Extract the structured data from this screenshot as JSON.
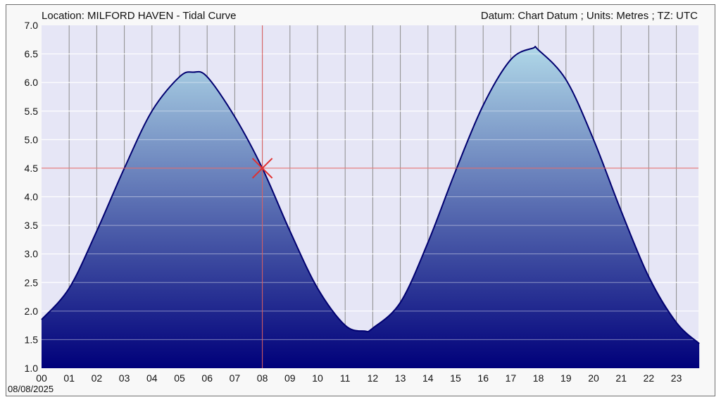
{
  "header": {
    "location": "Location: MILFORD HAVEN - Tidal Curve",
    "datum": "Datum: Chart Datum ; Units: Metres ; TZ: UTC"
  },
  "date_label": "08/08/2025",
  "colors": {
    "plot_bg": "#e6e6f6",
    "curve": "#000070",
    "fill_top": "#b0d8e8",
    "fill_bottom": "#00007a",
    "crosshair": "#e06060",
    "vgrid": "#8c8c8c",
    "hgrid": "#ffffff"
  },
  "chart_data": {
    "type": "area",
    "title": "Location: MILFORD HAVEN - Tidal Curve",
    "xlabel": "",
    "ylabel": "",
    "xlim": [
      0,
      23.83
    ],
    "ylim": [
      1.0,
      7.0
    ],
    "x_ticks": [
      "00",
      "01",
      "02",
      "03",
      "04",
      "05",
      "06",
      "07",
      "08",
      "09",
      "10",
      "11",
      "12",
      "13",
      "14",
      "15",
      "16",
      "17",
      "18",
      "19",
      "20",
      "21",
      "22",
      "23"
    ],
    "y_ticks": [
      "1.0",
      "1.5",
      "2.0",
      "2.5",
      "3.0",
      "3.5",
      "4.0",
      "4.5",
      "5.0",
      "5.5",
      "6.0",
      "6.5",
      "7.0"
    ],
    "grid": true,
    "series": [
      {
        "x": [
          0.0,
          1.0,
          2.0,
          3.0,
          4.0,
          5.0,
          5.5,
          6.0,
          7.0,
          8.0,
          9.0,
          10.0,
          11.0,
          11.7,
          12.0,
          13.0,
          14.0,
          15.0,
          16.0,
          17.0,
          17.8,
          18.0,
          19.0,
          20.0,
          21.0,
          22.0,
          23.0,
          23.83
        ],
        "y": [
          1.85,
          2.4,
          3.4,
          4.5,
          5.5,
          6.1,
          6.18,
          6.1,
          5.4,
          4.5,
          3.4,
          2.4,
          1.75,
          1.65,
          1.7,
          2.15,
          3.2,
          4.45,
          5.6,
          6.4,
          6.6,
          6.57,
          6.05,
          5.0,
          3.75,
          2.6,
          1.8,
          1.43
        ]
      }
    ],
    "crosshair": {
      "x": 8.0,
      "y": 4.5
    }
  }
}
